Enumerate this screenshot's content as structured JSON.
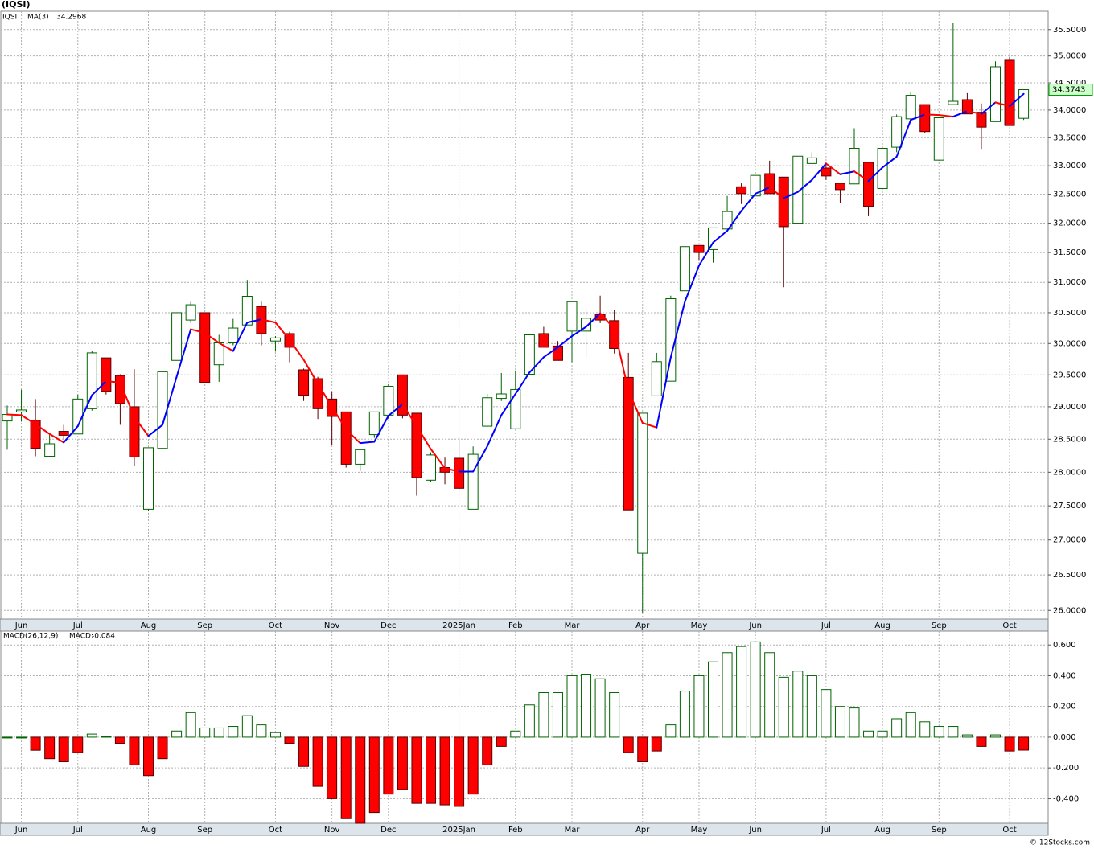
{
  "chart_data": [
    {
      "type": "candlestick",
      "title": "(IQSI)",
      "log_scale": true,
      "grid": true,
      "categories": [
        null,
        "Jun",
        null,
        null,
        null,
        "Jul",
        null,
        null,
        null,
        null,
        "Aug",
        null,
        null,
        null,
        "Sep",
        null,
        null,
        null,
        null,
        "Oct",
        null,
        null,
        null,
        "Nov",
        null,
        null,
        null,
        "Dec",
        null,
        null,
        null,
        null,
        "2025Jan",
        null,
        null,
        null,
        "Feb",
        null,
        null,
        null,
        "Mar",
        null,
        null,
        null,
        null,
        "Apr",
        null,
        null,
        null,
        "May",
        null,
        null,
        null,
        "Jun",
        null,
        null,
        null,
        null,
        "Jul",
        null,
        null,
        null,
        "Aug",
        null,
        null,
        null,
        "Sep",
        null,
        null,
        null,
        null,
        "Oct",
        null
      ],
      "ohlc": {
        "name": "IQSI",
        "up_color": "#006400",
        "down_color": "#ff0000",
        "open": [
          28.78,
          28.92,
          28.79,
          28.24,
          28.62,
          28.58,
          28.97,
          29.77,
          29.49,
          29.0,
          27.45,
          28.36,
          29.73,
          30.38,
          30.5,
          29.66,
          30.01,
          30.3,
          30.6,
          30.04,
          30.16,
          29.58,
          29.44,
          29.12,
          28.92,
          28.12,
          28.57,
          28.87,
          29.5,
          28.9,
          27.88,
          28.07,
          28.21,
          27.45,
          28.7,
          29.13,
          28.66,
          29.51,
          30.16,
          29.96,
          30.2,
          30.2,
          30.47,
          30.37,
          29.46,
          26.81,
          29.17,
          29.4,
          30.86,
          31.62,
          31.55,
          31.9,
          32.63,
          32.47,
          32.86,
          32.8,
          32.0,
          33.04,
          32.96,
          32.69,
          32.68,
          33.06,
          32.6,
          33.33,
          33.84,
          34.1,
          33.1,
          34.1,
          34.19,
          33.96,
          33.79,
          34.92,
          33.85
        ],
        "high": [
          29.02,
          29.27,
          29.12,
          28.58,
          28.72,
          29.19,
          29.88,
          29.77,
          29.51,
          29.59,
          28.37,
          29.55,
          30.5,
          30.68,
          30.5,
          30.14,
          30.4,
          31.04,
          30.68,
          30.12,
          30.19,
          29.6,
          29.47,
          29.24,
          28.92,
          28.34,
          28.92,
          29.35,
          29.5,
          28.9,
          28.3,
          28.22,
          28.52,
          28.39,
          29.2,
          29.53,
          29.57,
          30.16,
          30.27,
          30.04,
          30.68,
          30.57,
          30.78,
          30.55,
          29.85,
          28.9,
          29.85,
          30.78,
          31.6,
          31.62,
          31.92,
          32.47,
          32.69,
          32.83,
          33.09,
          32.8,
          33.17,
          33.24,
          33.03,
          32.69,
          33.67,
          33.06,
          33.31,
          33.92,
          34.34,
          34.1,
          33.86,
          35.62,
          34.31,
          34.12,
          34.9,
          34.98,
          34.38
        ],
        "low": [
          28.34,
          28.77,
          28.24,
          28.24,
          28.5,
          28.58,
          28.94,
          29.19,
          28.72,
          28.1,
          27.43,
          28.36,
          29.73,
          30.33,
          29.38,
          29.39,
          29.97,
          30.3,
          29.97,
          29.87,
          29.7,
          29.09,
          28.81,
          28.41,
          28.07,
          28.02,
          28.52,
          28.81,
          28.82,
          27.65,
          27.85,
          27.82,
          27.74,
          27.45,
          28.7,
          29.09,
          28.66,
          29.51,
          29.94,
          29.73,
          29.7,
          29.77,
          30.33,
          29.84,
          27.44,
          25.96,
          29.17,
          29.4,
          30.86,
          31.36,
          31.33,
          31.9,
          32.33,
          32.47,
          32.51,
          30.92,
          32.0,
          33.04,
          32.75,
          32.35,
          32.68,
          32.12,
          32.6,
          33.24,
          33.84,
          33.58,
          33.1,
          34.1,
          33.93,
          33.3,
          33.79,
          33.72,
          33.82
        ],
        "close": [
          28.88,
          28.95,
          28.36,
          28.43,
          28.56,
          29.12,
          29.85,
          29.24,
          29.05,
          28.23,
          28.37,
          29.55,
          30.5,
          30.63,
          29.38,
          30.01,
          30.25,
          30.77,
          30.16,
          30.09,
          29.94,
          29.18,
          28.97,
          28.85,
          28.12,
          28.34,
          28.92,
          29.32,
          28.87,
          27.92,
          28.26,
          28.0,
          27.76,
          28.27,
          29.14,
          29.2,
          29.27,
          30.14,
          29.94,
          29.73,
          30.68,
          30.41,
          30.38,
          29.92,
          27.44,
          28.9,
          29.71,
          30.73,
          31.6,
          31.5,
          31.92,
          32.2,
          32.51,
          32.83,
          32.51,
          31.94,
          33.17,
          33.14,
          32.82,
          32.58,
          33.31,
          32.29,
          33.31,
          33.88,
          34.27,
          33.61,
          33.86,
          34.16,
          33.93,
          33.69,
          34.8,
          33.72,
          34.3743
        ]
      },
      "ma": {
        "name": "MA(3)",
        "color": "#0000ff",
        "down_color": "#ff0000",
        "values": [
          28.88,
          28.87,
          28.73,
          28.58,
          28.45,
          28.7,
          29.18,
          29.4,
          29.38,
          28.84,
          28.55,
          28.72,
          29.47,
          30.23,
          30.17,
          30.01,
          29.88,
          30.34,
          30.39,
          30.34,
          30.06,
          29.74,
          29.36,
          29.0,
          28.65,
          28.44,
          28.46,
          28.86,
          29.04,
          28.7,
          28.35,
          28.06,
          28.01,
          28.01,
          28.39,
          28.87,
          29.2,
          29.54,
          29.78,
          29.94,
          30.12,
          30.27,
          30.49,
          30.24,
          29.25,
          28.75,
          28.68,
          29.78,
          30.68,
          31.28,
          31.67,
          31.87,
          32.21,
          32.51,
          32.62,
          32.43,
          32.54,
          32.75,
          33.04,
          32.85,
          32.9,
          32.73,
          32.97,
          33.16,
          33.82,
          33.92,
          33.91,
          33.88,
          33.98,
          33.93,
          34.14,
          34.07,
          34.2968
        ]
      },
      "ylim": [
        25.88,
        35.85
      ],
      "yticks": [
        {
          "value": 26,
          "label": "26.0000"
        },
        {
          "value": 26.5,
          "label": "26.5000"
        },
        {
          "value": 27,
          "label": "27.0000"
        },
        {
          "value": 27.5,
          "label": "27.5000"
        },
        {
          "value": 28,
          "label": "28.0000"
        },
        {
          "value": 28.5,
          "label": "28.5000"
        },
        {
          "value": 29,
          "label": "29.0000"
        },
        {
          "value": 29.5,
          "label": "29.5000"
        },
        {
          "value": 30,
          "label": "30.0000"
        },
        {
          "value": 30.5,
          "label": "30.5000"
        },
        {
          "value": 31,
          "label": "31.0000"
        },
        {
          "value": 31.5,
          "label": "31.5000"
        },
        {
          "value": 32,
          "label": "32.0000"
        },
        {
          "value": 32.5,
          "label": "32.5000"
        },
        {
          "value": 33,
          "label": "33.0000"
        },
        {
          "value": 33.5,
          "label": "33.5000"
        },
        {
          "value": 34,
          "label": "34.0000"
        },
        {
          "value": 34.5,
          "label": "34.5000"
        },
        {
          "value": 35,
          "label": "35.0000"
        },
        {
          "value": 35.5,
          "label": "35.5000"
        }
      ]
    },
    {
      "type": "bar",
      "title": "MACD(26,12,9)",
      "legend_label": "MACD:",
      "legend_color": "#0000ff",
      "grid": true,
      "up_color": "#006400",
      "down_color": "#ff0000",
      "categories": [
        null,
        "Jun",
        null,
        null,
        null,
        "Jul",
        null,
        null,
        null,
        null,
        "Aug",
        null,
        null,
        null,
        "Sep",
        null,
        null,
        null,
        null,
        "Oct",
        null,
        null,
        null,
        "Nov",
        null,
        null,
        null,
        "Dec",
        null,
        null,
        null,
        null,
        "2025Jan",
        null,
        null,
        null,
        "Feb",
        null,
        null,
        null,
        "Mar",
        null,
        null,
        null,
        null,
        "Apr",
        null,
        null,
        null,
        "May",
        null,
        null,
        null,
        "Jun",
        null,
        null,
        null,
        null,
        "Jul",
        null,
        null,
        null,
        "Aug",
        null,
        null,
        null,
        "Sep",
        null,
        null,
        null,
        null,
        "Oct",
        null
      ],
      "values": [
        0,
        0,
        -0.085,
        -0.14,
        -0.16,
        -0.1,
        0.02,
        0.005,
        -0.04,
        -0.18,
        -0.25,
        -0.14,
        0.04,
        0.16,
        0.06,
        0.06,
        0.07,
        0.14,
        0.08,
        0.03,
        -0.04,
        -0.19,
        -0.32,
        -0.4,
        -0.53,
        -0.56,
        -0.49,
        -0.37,
        -0.34,
        -0.43,
        -0.43,
        -0.44,
        -0.45,
        -0.37,
        -0.18,
        -0.06,
        0.04,
        0.21,
        0.29,
        0.29,
        0.4,
        0.41,
        0.38,
        0.29,
        -0.1,
        -0.16,
        -0.09,
        0.08,
        0.3,
        0.4,
        0.49,
        0.55,
        0.59,
        0.62,
        0.55,
        0.39,
        0.43,
        0.4,
        0.31,
        0.2,
        0.19,
        0.04,
        0.04,
        0.12,
        0.16,
        0.1,
        0.07,
        0.07,
        0.015,
        -0.06,
        0.015,
        -0.09,
        -0.084
      ],
      "ylim": [
        -0.56,
        0.69
      ],
      "yticks": [
        {
          "value": -0.4,
          "label": "-0.400"
        },
        {
          "value": -0.2,
          "label": "-0.200"
        },
        {
          "value": 0,
          "label": "0.000"
        },
        {
          "value": 0.2,
          "label": "0.200"
        },
        {
          "value": 0.4,
          "label": "0.400"
        },
        {
          "value": 0.6,
          "label": "0.600"
        }
      ]
    }
  ],
  "footer": "© 12Stocks.com"
}
